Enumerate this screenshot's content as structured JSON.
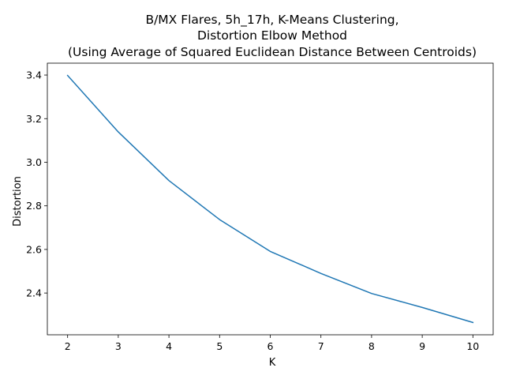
{
  "chart_data": {
    "type": "line",
    "title_lines": [
      "B/MX Flares, 5h_17h, K-Means Clustering,",
      "Distortion Elbow Method",
      "(Using Average of Squared Euclidean Distance Between Centroids)"
    ],
    "xlabel": "K",
    "ylabel": "Distortion",
    "x": [
      2,
      3,
      4,
      5,
      6,
      7,
      8,
      9,
      10
    ],
    "series": [
      {
        "values": [
          3.398,
          3.139,
          2.916,
          2.737,
          2.591,
          2.49,
          2.398,
          2.334,
          2.265
        ],
        "color": "#1f77b4"
      }
    ],
    "xlim": [
      1.6,
      10.4
    ],
    "ylim": [
      2.2085,
      3.4545
    ],
    "xticks": [
      2,
      3,
      4,
      5,
      6,
      7,
      8,
      9,
      10
    ],
    "xtick_labels": [
      "2",
      "3",
      "4",
      "5",
      "6",
      "7",
      "8",
      "9",
      "10"
    ],
    "yticks": [
      2.4,
      2.6,
      2.8,
      3.0,
      3.2,
      3.4
    ],
    "ytick_labels": [
      "2.4",
      "2.6",
      "2.8",
      "3.0",
      "3.2",
      "3.4"
    ],
    "grid": false,
    "legend": "none"
  }
}
